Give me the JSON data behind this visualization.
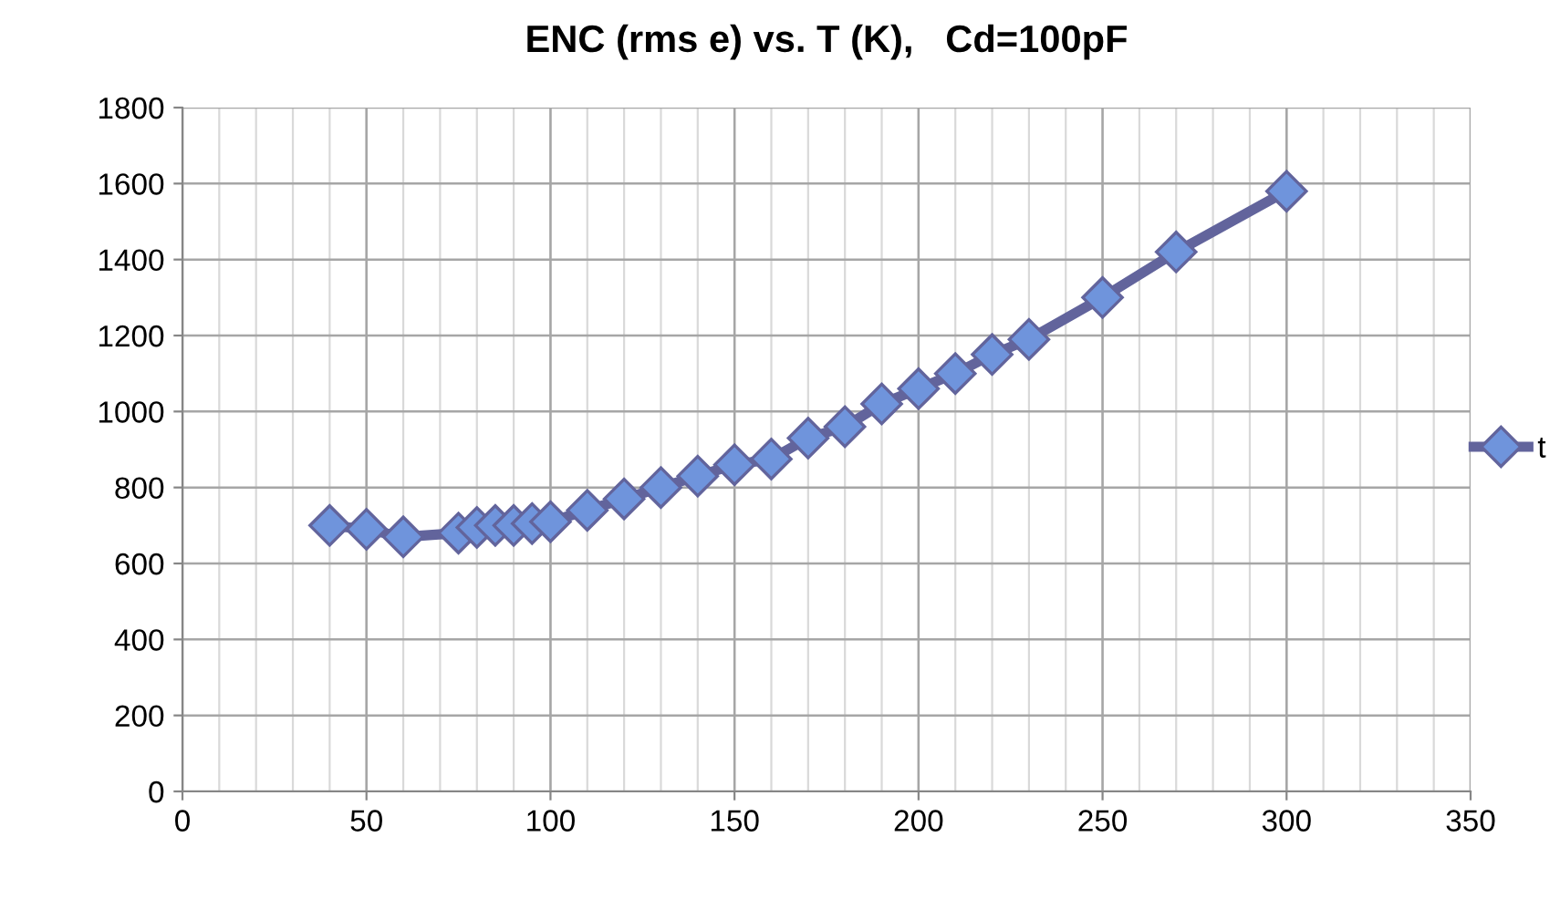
{
  "chart_data": {
    "type": "line",
    "title": "ENC (rms e) vs. T (K),   Cd=100pF",
    "x": [
      40,
      50,
      60,
      75,
      80,
      85,
      90,
      95,
      100,
      110,
      120,
      130,
      140,
      150,
      160,
      170,
      180,
      190,
      200,
      210,
      220,
      230,
      250,
      270,
      300
    ],
    "series": [
      {
        "name": "t",
        "color": "#62649c",
        "values": [
          700,
          690,
          670,
          680,
          695,
          700,
          700,
          705,
          710,
          740,
          770,
          800,
          830,
          860,
          875,
          930,
          960,
          1020,
          1060,
          1100,
          1150,
          1190,
          1300,
          1420,
          1580
        ]
      }
    ],
    "xlim": [
      0,
      350
    ],
    "xticks": [
      0,
      50,
      100,
      150,
      200,
      250,
      300,
      350
    ],
    "ylim": [
      0,
      1800
    ],
    "yticks": [
      0,
      200,
      400,
      600,
      800,
      1000,
      1200,
      1400,
      1600,
      1800
    ],
    "grid": true,
    "legend": "right",
    "marker": "diamond",
    "line_style": "solid"
  }
}
